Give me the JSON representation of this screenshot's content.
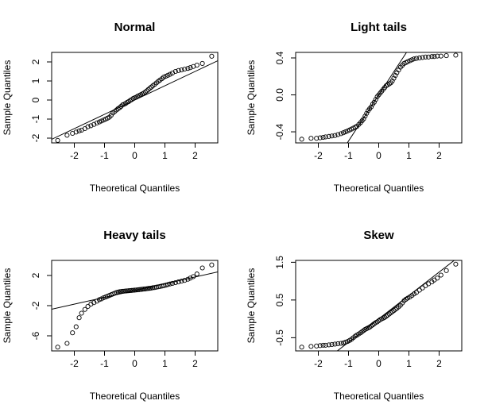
{
  "chart_data": [
    {
      "type": "scatter",
      "title": "Normal",
      "xlabel": "Theoretical Quantiles",
      "ylabel": "Sample Quantiles",
      "xlim": [
        -2.75,
        2.75
      ],
      "ylim": [
        -2.25,
        2.5
      ],
      "xticks": [
        -2,
        -1,
        0,
        1,
        2
      ],
      "yticks": [
        -2,
        -1,
        0,
        1,
        2
      ],
      "xtick_labels": [
        "-2",
        "-1",
        "0",
        "1",
        "2"
      ],
      "ytick_labels": [
        "-2",
        "-1",
        "0",
        "1",
        "2"
      ],
      "grid": false,
      "reference_line": {
        "intercept": 0.0,
        "slope": 0.75
      },
      "points": [
        [
          -2.55,
          -2.12
        ],
        [
          -2.24,
          -1.85
        ],
        [
          -2.06,
          -1.75
        ],
        [
          -1.94,
          -1.68
        ],
        [
          -1.84,
          -1.62
        ],
        [
          -1.76,
          -1.58
        ],
        [
          -1.65,
          -1.5
        ],
        [
          -1.55,
          -1.4
        ],
        [
          -1.45,
          -1.35
        ],
        [
          -1.35,
          -1.28
        ],
        [
          -1.25,
          -1.2
        ],
        [
          -1.17,
          -1.15
        ],
        [
          -1.1,
          -1.1
        ],
        [
          -1.03,
          -1.05
        ],
        [
          -0.96,
          -1.0
        ],
        [
          -0.9,
          -0.95
        ],
        [
          -0.84,
          -0.9
        ],
        [
          -0.78,
          -0.8
        ],
        [
          -0.72,
          -0.68
        ],
        [
          -0.66,
          -0.6
        ],
        [
          -0.6,
          -0.52
        ],
        [
          -0.55,
          -0.45
        ],
        [
          -0.5,
          -0.4
        ],
        [
          -0.45,
          -0.33
        ],
        [
          -0.4,
          -0.25
        ],
        [
          -0.35,
          -0.22
        ],
        [
          -0.3,
          -0.18
        ],
        [
          -0.25,
          -0.12
        ],
        [
          -0.2,
          -0.08
        ],
        [
          -0.15,
          -0.02
        ],
        [
          -0.1,
          0.02
        ],
        [
          -0.05,
          0.08
        ],
        [
          0.0,
          0.12
        ],
        [
          0.05,
          0.15
        ],
        [
          0.1,
          0.2
        ],
        [
          0.15,
          0.24
        ],
        [
          0.2,
          0.28
        ],
        [
          0.25,
          0.32
        ],
        [
          0.3,
          0.36
        ],
        [
          0.35,
          0.42
        ],
        [
          0.4,
          0.48
        ],
        [
          0.45,
          0.55
        ],
        [
          0.5,
          0.62
        ],
        [
          0.55,
          0.68
        ],
        [
          0.6,
          0.75
        ],
        [
          0.66,
          0.82
        ],
        [
          0.72,
          0.9
        ],
        [
          0.78,
          0.98
        ],
        [
          0.84,
          1.05
        ],
        [
          0.9,
          1.12
        ],
        [
          0.96,
          1.2
        ],
        [
          1.03,
          1.25
        ],
        [
          1.1,
          1.3
        ],
        [
          1.17,
          1.35
        ],
        [
          1.25,
          1.42
        ],
        [
          1.35,
          1.5
        ],
        [
          1.45,
          1.55
        ],
        [
          1.55,
          1.58
        ],
        [
          1.65,
          1.62
        ],
        [
          1.76,
          1.66
        ],
        [
          1.84,
          1.7
        ],
        [
          1.94,
          1.76
        ],
        [
          2.06,
          1.83
        ],
        [
          2.24,
          1.92
        ],
        [
          2.55,
          2.3
        ]
      ]
    },
    {
      "type": "scatter",
      "title": "Light tails",
      "xlabel": "Theoretical Quantiles",
      "ylabel": "Sample Quantiles",
      "xlim": [
        -2.75,
        2.75
      ],
      "ylim": [
        -0.52,
        0.46
      ],
      "xticks": [
        -2,
        -1,
        0,
        1,
        2
      ],
      "yticks": [
        -0.4,
        0.0,
        0.4
      ],
      "xtick_labels": [
        "-2",
        "-1",
        "0",
        "1",
        "2"
      ],
      "ytick_labels": [
        "-0.4",
        "0.0",
        "0.4"
      ],
      "grid": false,
      "reference_line": {
        "intercept": 0.0,
        "slope": 0.5
      },
      "points": [
        [
          -2.55,
          -0.48
        ],
        [
          -2.24,
          -0.47
        ],
        [
          -2.06,
          -0.47
        ],
        [
          -1.94,
          -0.465
        ],
        [
          -1.84,
          -0.46
        ],
        [
          -1.76,
          -0.455
        ],
        [
          -1.65,
          -0.45
        ],
        [
          -1.55,
          -0.445
        ],
        [
          -1.45,
          -0.44
        ],
        [
          -1.35,
          -0.43
        ],
        [
          -1.25,
          -0.42
        ],
        [
          -1.17,
          -0.41
        ],
        [
          -1.1,
          -0.4
        ],
        [
          -1.03,
          -0.39
        ],
        [
          -0.96,
          -0.38
        ],
        [
          -0.9,
          -0.37
        ],
        [
          -0.84,
          -0.36
        ],
        [
          -0.78,
          -0.35
        ],
        [
          -0.72,
          -0.34
        ],
        [
          -0.66,
          -0.32
        ],
        [
          -0.6,
          -0.3
        ],
        [
          -0.55,
          -0.28
        ],
        [
          -0.5,
          -0.26
        ],
        [
          -0.45,
          -0.23
        ],
        [
          -0.4,
          -0.2
        ],
        [
          -0.35,
          -0.17
        ],
        [
          -0.3,
          -0.15
        ],
        [
          -0.25,
          -0.13
        ],
        [
          -0.2,
          -0.1
        ],
        [
          -0.15,
          -0.08
        ],
        [
          -0.1,
          -0.05
        ],
        [
          -0.05,
          -0.02
        ],
        [
          0.0,
          0.0
        ],
        [
          0.05,
          0.02
        ],
        [
          0.1,
          0.04
        ],
        [
          0.15,
          0.06
        ],
        [
          0.2,
          0.08
        ],
        [
          0.25,
          0.1
        ],
        [
          0.3,
          0.11
        ],
        [
          0.35,
          0.12
        ],
        [
          0.4,
          0.13
        ],
        [
          0.45,
          0.15
        ],
        [
          0.5,
          0.18
        ],
        [
          0.55,
          0.21
        ],
        [
          0.6,
          0.24
        ],
        [
          0.66,
          0.27
        ],
        [
          0.72,
          0.3
        ],
        [
          0.78,
          0.32
        ],
        [
          0.84,
          0.34
        ],
        [
          0.9,
          0.35
        ],
        [
          0.96,
          0.36
        ],
        [
          1.03,
          0.37
        ],
        [
          1.1,
          0.38
        ],
        [
          1.17,
          0.39
        ],
        [
          1.25,
          0.395
        ],
        [
          1.35,
          0.4
        ],
        [
          1.45,
          0.405
        ],
        [
          1.55,
          0.41
        ],
        [
          1.65,
          0.41
        ],
        [
          1.76,
          0.415
        ],
        [
          1.84,
          0.415
        ],
        [
          1.94,
          0.42
        ],
        [
          2.06,
          0.42
        ],
        [
          2.24,
          0.425
        ],
        [
          2.55,
          0.43
        ]
      ]
    },
    {
      "type": "scatter",
      "title": "Heavy tails",
      "xlabel": "Theoretical Quantiles",
      "ylabel": "Sample Quantiles",
      "xlim": [
        -2.75,
        2.75
      ],
      "ylim": [
        -8.0,
        4.0
      ],
      "xticks": [
        -2,
        -1,
        0,
        1,
        2
      ],
      "yticks": [
        -6,
        -2,
        2
      ],
      "xtick_labels": [
        "-2",
        "-1",
        "0",
        "1",
        "2"
      ],
      "ytick_labels": [
        "-6",
        "-2",
        "2"
      ],
      "grid": false,
      "reference_line": {
        "intercept": 0.0,
        "slope": 0.9
      },
      "points": [
        [
          -2.55,
          -7.5
        ],
        [
          -2.24,
          -7.0
        ],
        [
          -2.06,
          -5.6
        ],
        [
          -1.94,
          -4.8
        ],
        [
          -1.84,
          -3.6
        ],
        [
          -1.76,
          -3.0
        ],
        [
          -1.65,
          -2.5
        ],
        [
          -1.55,
          -2.1
        ],
        [
          -1.45,
          -1.8
        ],
        [
          -1.35,
          -1.6
        ],
        [
          -1.25,
          -1.4
        ],
        [
          -1.17,
          -1.2
        ],
        [
          -1.1,
          -1.1
        ],
        [
          -1.03,
          -0.95
        ],
        [
          -0.96,
          -0.85
        ],
        [
          -0.9,
          -0.75
        ],
        [
          -0.84,
          -0.65
        ],
        [
          -0.78,
          -0.55
        ],
        [
          -0.72,
          -0.45
        ],
        [
          -0.66,
          -0.35
        ],
        [
          -0.6,
          -0.25
        ],
        [
          -0.55,
          -0.2
        ],
        [
          -0.5,
          -0.15
        ],
        [
          -0.45,
          -0.12
        ],
        [
          -0.4,
          -0.1
        ],
        [
          -0.35,
          -0.08
        ],
        [
          -0.3,
          -0.06
        ],
        [
          -0.25,
          -0.04
        ],
        [
          -0.2,
          -0.02
        ],
        [
          -0.15,
          0.0
        ],
        [
          -0.1,
          0.02
        ],
        [
          -0.05,
          0.04
        ],
        [
          0.0,
          0.06
        ],
        [
          0.05,
          0.08
        ],
        [
          0.1,
          0.1
        ],
        [
          0.15,
          0.12
        ],
        [
          0.2,
          0.15
        ],
        [
          0.25,
          0.18
        ],
        [
          0.3,
          0.2
        ],
        [
          0.35,
          0.22
        ],
        [
          0.4,
          0.25
        ],
        [
          0.45,
          0.28
        ],
        [
          0.5,
          0.3
        ],
        [
          0.55,
          0.33
        ],
        [
          0.6,
          0.37
        ],
        [
          0.66,
          0.4
        ],
        [
          0.72,
          0.45
        ],
        [
          0.78,
          0.5
        ],
        [
          0.84,
          0.55
        ],
        [
          0.9,
          0.6
        ],
        [
          0.96,
          0.65
        ],
        [
          1.03,
          0.72
        ],
        [
          1.1,
          0.8
        ],
        [
          1.17,
          0.88
        ],
        [
          1.25,
          0.95
        ],
        [
          1.35,
          1.05
        ],
        [
          1.45,
          1.15
        ],
        [
          1.55,
          1.25
        ],
        [
          1.65,
          1.35
        ],
        [
          1.76,
          1.5
        ],
        [
          1.84,
          1.65
        ],
        [
          1.94,
          1.85
        ],
        [
          2.06,
          2.2
        ],
        [
          2.24,
          3.0
        ],
        [
          2.55,
          3.4
        ]
      ]
    },
    {
      "type": "scatter",
      "title": "Skew",
      "xlabel": "Theoretical Quantiles",
      "ylabel": "Sample Quantiles",
      "xlim": [
        -2.75,
        2.75
      ],
      "ylim": [
        -0.85,
        1.55
      ],
      "xticks": [
        -2,
        -1,
        0,
        1,
        2
      ],
      "yticks": [
        -0.5,
        0.5,
        1.5
      ],
      "xtick_labels": [
        "-2",
        "-1",
        "0",
        "1",
        "2"
      ],
      "ytick_labels": [
        "-0.5",
        "0.5",
        "1.5"
      ],
      "grid": false,
      "reference_line": {
        "intercept": 0.0,
        "slope": 0.62
      },
      "points": [
        [
          -2.55,
          -0.75
        ],
        [
          -2.24,
          -0.73
        ],
        [
          -2.06,
          -0.72
        ],
        [
          -1.94,
          -0.71
        ],
        [
          -1.84,
          -0.7
        ],
        [
          -1.76,
          -0.7
        ],
        [
          -1.65,
          -0.69
        ],
        [
          -1.55,
          -0.68
        ],
        [
          -1.45,
          -0.67
        ],
        [
          -1.35,
          -0.66
        ],
        [
          -1.25,
          -0.65
        ],
        [
          -1.17,
          -0.64
        ],
        [
          -1.1,
          -0.62
        ],
        [
          -1.03,
          -0.6
        ],
        [
          -0.96,
          -0.57
        ],
        [
          -0.9,
          -0.54
        ],
        [
          -0.84,
          -0.5
        ],
        [
          -0.78,
          -0.46
        ],
        [
          -0.72,
          -0.43
        ],
        [
          -0.66,
          -0.4
        ],
        [
          -0.6,
          -0.37
        ],
        [
          -0.55,
          -0.34
        ],
        [
          -0.5,
          -0.31
        ],
        [
          -0.45,
          -0.28
        ],
        [
          -0.4,
          -0.26
        ],
        [
          -0.35,
          -0.24
        ],
        [
          -0.3,
          -0.22
        ],
        [
          -0.25,
          -0.19
        ],
        [
          -0.2,
          -0.16
        ],
        [
          -0.15,
          -0.13
        ],
        [
          -0.1,
          -0.1
        ],
        [
          -0.05,
          -0.08
        ],
        [
          0.0,
          -0.05
        ],
        [
          0.05,
          -0.02
        ],
        [
          0.1,
          0.0
        ],
        [
          0.15,
          0.02
        ],
        [
          0.2,
          0.04
        ],
        [
          0.25,
          0.07
        ],
        [
          0.3,
          0.1
        ],
        [
          0.35,
          0.13
        ],
        [
          0.4,
          0.16
        ],
        [
          0.45,
          0.19
        ],
        [
          0.5,
          0.22
        ],
        [
          0.55,
          0.25
        ],
        [
          0.6,
          0.28
        ],
        [
          0.66,
          0.32
        ],
        [
          0.72,
          0.36
        ],
        [
          0.78,
          0.42
        ],
        [
          0.84,
          0.48
        ],
        [
          0.9,
          0.52
        ],
        [
          0.96,
          0.55
        ],
        [
          1.03,
          0.58
        ],
        [
          1.1,
          0.62
        ],
        [
          1.17,
          0.66
        ],
        [
          1.25,
          0.7
        ],
        [
          1.35,
          0.76
        ],
        [
          1.45,
          0.82
        ],
        [
          1.55,
          0.88
        ],
        [
          1.65,
          0.93
        ],
        [
          1.76,
          0.98
        ],
        [
          1.84,
          1.03
        ],
        [
          1.94,
          1.08
        ],
        [
          2.06,
          1.16
        ],
        [
          2.24,
          1.28
        ],
        [
          2.55,
          1.45
        ]
      ]
    }
  ]
}
